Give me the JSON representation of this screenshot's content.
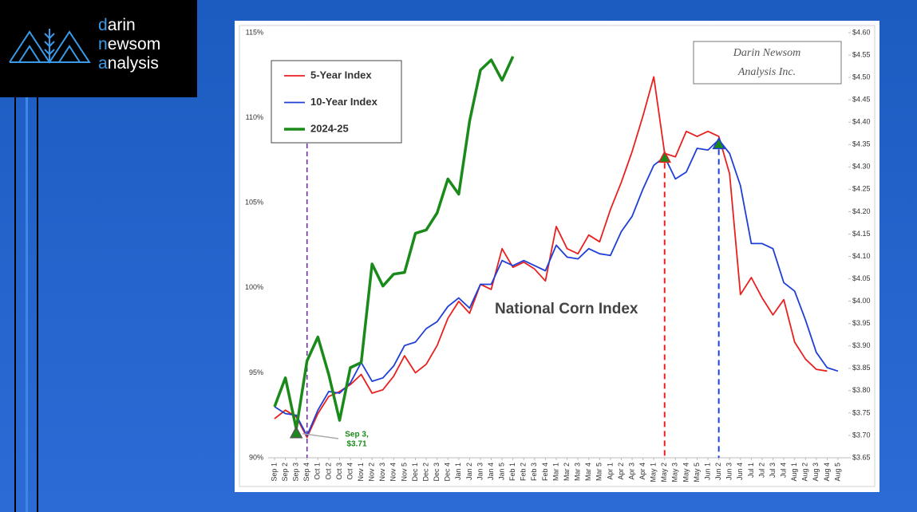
{
  "logo": {
    "lines": [
      "darin",
      "newsom",
      "analysis"
    ]
  },
  "chart_data": {
    "type": "line",
    "title": "National Corn Index",
    "watermark": [
      "Darin Newsom",
      "Analysis Inc."
    ],
    "annotation": [
      "Sep 3,",
      "$3.71"
    ],
    "categories": [
      "Sep 1",
      "Sep 2",
      "Sep 3",
      "Sep 4",
      "Oct 1",
      "Oct 2",
      "Oct 3",
      "Oct 4",
      "Nov 1",
      "Nov 2",
      "Nov 3",
      "Nov 4",
      "Nov 5",
      "Dec 1",
      "Dec 2",
      "Dec 3",
      "Dec 4",
      "Jan 1",
      "Jan 2",
      "Jan 3",
      "Jan 4",
      "Jan 5",
      "Feb 1",
      "Feb 2",
      "Feb 3",
      "Feb 4",
      "Mar 1",
      "Mar 2",
      "Mar 3",
      "Mar 4",
      "Mar 5",
      "Apr 1",
      "Apr 2",
      "Apr 3",
      "Apr 4",
      "May 1",
      "May 2",
      "May 3",
      "May 4",
      "May 5",
      "Jun 1",
      "Jun 2",
      "Jun 3",
      "Jun 4",
      "Jul 1",
      "Jul 2",
      "Jul 3",
      "Jul 4",
      "Aug 1",
      "Aug 2",
      "Aug 3",
      "Aug 4",
      "Aug 5"
    ],
    "series": [
      {
        "name": "5-Year Index",
        "color": "#e8211f",
        "values": [
          92.3,
          92.8,
          92.4,
          91.2,
          92.6,
          93.6,
          93.9,
          94.3,
          94.9,
          93.8,
          94.0,
          94.8,
          96.0,
          95.0,
          95.5,
          96.6,
          98.2,
          99.2,
          98.5,
          100.2,
          99.9,
          102.3,
          101.2,
          101.5,
          101.1,
          100.4,
          103.6,
          102.3,
          102.0,
          103.1,
          102.7,
          104.6,
          106.2,
          108.0,
          110.1,
          112.4,
          107.9,
          107.7,
          109.2,
          108.9,
          109.2,
          108.9,
          106.7,
          99.6,
          100.6,
          99.4,
          98.4,
          99.3,
          96.8,
          95.8,
          95.2,
          95.1,
          null
        ]
      },
      {
        "name": "10-Year Index",
        "color": "#1f3fd6",
        "values": [
          93.0,
          92.6,
          92.5,
          91.3,
          92.8,
          93.9,
          93.8,
          94.4,
          95.6,
          94.5,
          94.7,
          95.4,
          96.6,
          96.8,
          97.6,
          98.0,
          98.9,
          99.4,
          98.8,
          100.2,
          100.2,
          101.6,
          101.3,
          101.6,
          101.3,
          101.0,
          102.5,
          101.8,
          101.7,
          102.3,
          102.0,
          101.9,
          103.3,
          104.2,
          105.8,
          107.2,
          107.7,
          106.4,
          106.8,
          108.2,
          108.1,
          108.7,
          107.9,
          106.0,
          102.6,
          102.6,
          102.3,
          100.3,
          99.8,
          98.1,
          96.2,
          95.3,
          95.1
        ]
      },
      {
        "name": "2024-25",
        "color": "#1a8a1a",
        "values": [
          93.0,
          94.7,
          91.7,
          95.7,
          97.1,
          94.9,
          92.2,
          95.3,
          95.6,
          101.4,
          100.1,
          100.8,
          100.9,
          103.2,
          103.4,
          104.4,
          106.4,
          105.5,
          109.8,
          112.8,
          113.4,
          112.2,
          113.6,
          null,
          null,
          null,
          null,
          null,
          null,
          null,
          null,
          null,
          null,
          null,
          null,
          null,
          null,
          null,
          null,
          null,
          null,
          null,
          null,
          null,
          null,
          null,
          null,
          null,
          null,
          null,
          null,
          null,
          null
        ]
      }
    ],
    "ylim": [
      90,
      115
    ],
    "yticks": [
      {
        "value": 90,
        "label": "90%"
      },
      {
        "value": 95,
        "label": "95%"
      },
      {
        "value": 100,
        "label": "100%"
      },
      {
        "value": 105,
        "label": "105%"
      },
      {
        "value": 110,
        "label": "110%"
      },
      {
        "value": 115,
        "label": "115%"
      }
    ],
    "y2lim": [
      3.65,
      4.6
    ],
    "y2ticks": [
      {
        "value": 3.65,
        "label": "$3.65"
      },
      {
        "value": 3.7,
        "label": "$3.70"
      },
      {
        "value": 3.75,
        "label": "$3.75"
      },
      {
        "value": 3.8,
        "label": "$3.80"
      },
      {
        "value": 3.85,
        "label": "$3.85"
      },
      {
        "value": 3.9,
        "label": "$3.90"
      },
      {
        "value": 3.95,
        "label": "$3.95"
      },
      {
        "value": 4,
        "label": "$4.00"
      },
      {
        "value": 4.05,
        "label": "$4.05"
      },
      {
        "value": 4.1,
        "label": "$4.10"
      },
      {
        "value": 4.15,
        "label": "$4.15"
      },
      {
        "value": 4.2,
        "label": "$4.20"
      },
      {
        "value": 4.25,
        "label": "$4.25"
      },
      {
        "value": 4.3,
        "label": "$4.30"
      },
      {
        "value": 4.35,
        "label": "$4.35"
      },
      {
        "value": 4.4,
        "label": "$4.40"
      },
      {
        "value": 4.45,
        "label": "$4.45"
      },
      {
        "value": 4.5,
        "label": "$4.50"
      },
      {
        "value": 4.55,
        "label": "$4.55"
      },
      {
        "value": 4.6,
        "label": "$4.60"
      }
    ],
    "grid": false,
    "legend": "upper left"
  }
}
